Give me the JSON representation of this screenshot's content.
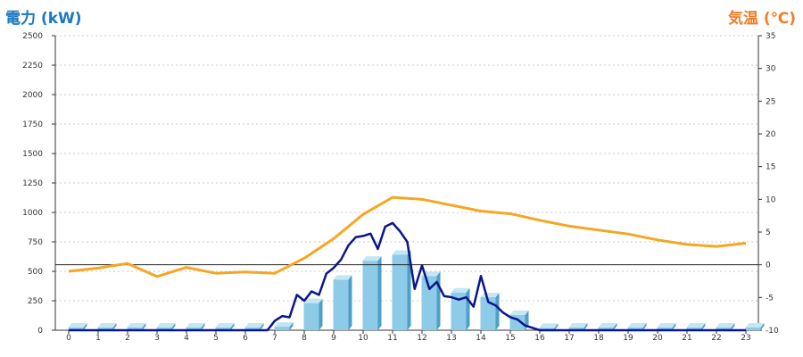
{
  "chart_data": {
    "type": "bar+line",
    "left_axis_title": "電力 (kW)",
    "right_axis_title": "気温 (℃)",
    "colors": {
      "left_title": "#1a78c2",
      "right_title": "#f07d28",
      "bar_front": "#8dcbe8",
      "bar_side": "#4f9fc6",
      "bar_top": "#c5e6f5",
      "power_line": "#0b158c",
      "temperature_line": "#f5a623",
      "zero_line": "#222222",
      "grid": "#bbbbbb"
    },
    "x_ticks": [
      "0",
      "1",
      "2",
      "3",
      "4",
      "5",
      "6",
      "7",
      "8",
      "9",
      "10",
      "11",
      "12",
      "13",
      "14",
      "15",
      "16",
      "17",
      "18",
      "19",
      "20",
      "21",
      "22",
      "23"
    ],
    "y_left": {
      "min": 0,
      "max": 2500,
      "ticks": [
        "0",
        "250",
        "500",
        "750",
        "1000",
        "1250",
        "1500",
        "1750",
        "2000",
        "2250",
        "2500"
      ]
    },
    "y_right": {
      "min": -10,
      "max": 35,
      "ticks": [
        "-10",
        "-5",
        "0",
        "5",
        "10",
        "15",
        "20",
        "25",
        "30",
        "35"
      ]
    },
    "grid": true,
    "hourly_power_kw": [
      0,
      0,
      0,
      0,
      0,
      0,
      0,
      30,
      230,
      430,
      590,
      640,
      460,
      320,
      280,
      130,
      20,
      0,
      0,
      0,
      0,
      0,
      0,
      0
    ],
    "power_line_x": [
      0,
      1,
      2,
      3,
      4,
      5,
      6,
      6.75,
      7,
      7.25,
      7.5,
      7.75,
      8,
      8.25,
      8.5,
      8.75,
      9,
      9.25,
      9.5,
      9.75,
      10,
      10.25,
      10.5,
      10.75,
      11,
      11.25,
      11.5,
      11.75,
      12,
      12.25,
      12.5,
      12.75,
      13,
      13.25,
      13.5,
      13.75,
      14,
      14.25,
      14.5,
      14.75,
      15,
      15.25,
      15.5,
      15.75,
      16,
      17,
      18,
      19,
      20,
      21,
      22,
      23
    ],
    "power_line_kw": [
      0,
      0,
      0,
      0,
      0,
      0,
      0,
      0,
      80,
      120,
      110,
      300,
      250,
      330,
      300,
      480,
      530,
      600,
      720,
      790,
      800,
      820,
      690,
      880,
      910,
      840,
      750,
      350,
      550,
      350,
      410,
      290,
      280,
      260,
      280,
      200,
      460,
      240,
      210,
      150,
      110,
      90,
      40,
      20,
      0,
      0,
      0,
      0,
      0,
      0,
      0,
      0
    ],
    "temperature_c": [
      -1,
      -0.5,
      0.2,
      -1.8,
      -0.4,
      -1.3,
      -1.1,
      -1.3,
      1,
      4,
      7.7,
      10.3,
      10,
      9.1,
      8.2,
      7.8,
      6.8,
      5.9,
      5.3,
      4.7,
      3.8,
      3.1,
      2.8,
      3.3
    ]
  }
}
